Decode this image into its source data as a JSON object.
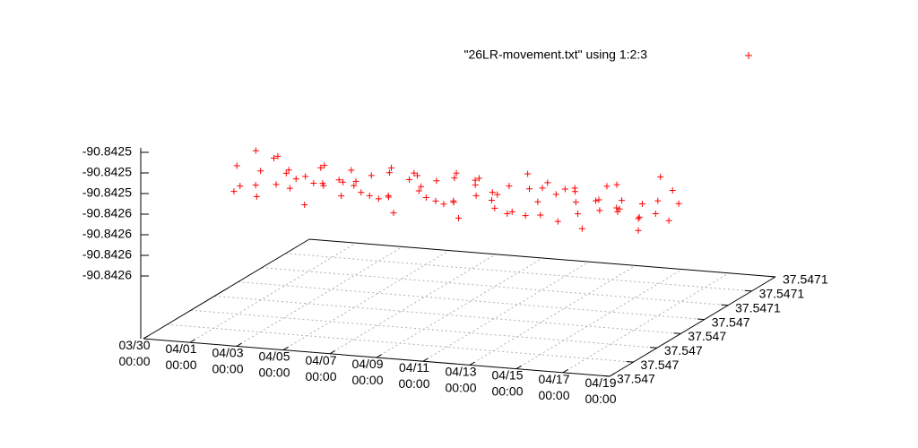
{
  "chart_data": {
    "type": "scatter3d",
    "series": [
      {
        "name": "\"26LR-movement.txt\" using 1:2:3",
        "color": "#ff0000",
        "x": [
          "03/31 00:00",
          "03/31 05:00",
          "03/31 10:00",
          "03/31 15:00",
          "03/31 20:00",
          "04/01 00:00",
          "04/01 05:00",
          "04/01 10:00",
          "04/01 15:00",
          "04/01 20:00",
          "04/02 00:00",
          "04/02 05:00",
          "04/02 10:00",
          "04/02 15:00",
          "04/02 20:00",
          "04/03 00:00",
          "04/03 05:00",
          "04/03 10:00",
          "04/03 15:00",
          "04/03 20:00",
          "04/04 00:00",
          "04/04 05:00",
          "04/04 10:00",
          "04/04 15:00",
          "04/04 20:00",
          "04/05 00:00",
          "04/05 05:00",
          "04/05 10:00",
          "04/05 15:00",
          "04/05 20:00",
          "04/06 00:00",
          "04/06 05:00",
          "04/06 10:00",
          "04/06 15:00",
          "04/06 20:00",
          "04/07 00:00",
          "04/07 05:00",
          "04/07 10:00",
          "04/07 15:00",
          "04/07 20:00",
          "04/08 00:00",
          "04/08 05:00",
          "04/08 10:00",
          "04/08 15:00",
          "04/08 20:00",
          "04/09 00:00",
          "04/09 05:00",
          "04/09 10:00",
          "04/09 15:00",
          "04/09 20:00",
          "04/10 00:00",
          "04/10 05:00",
          "04/10 10:00",
          "04/10 15:00",
          "04/10 20:00",
          "04/11 00:00",
          "04/11 05:00",
          "04/11 10:00",
          "04/11 15:00",
          "04/11 20:00",
          "04/12 00:00",
          "04/12 05:00",
          "04/12 10:00",
          "04/12 15:00",
          "04/12 20:00",
          "04/13 00:00",
          "04/13 05:00",
          "04/13 10:00",
          "04/13 15:00",
          "04/13 20:00",
          "04/14 00:00",
          "04/14 05:00",
          "04/14 10:00",
          "04/14 15:00",
          "04/14 20:00",
          "04/15 00:00",
          "04/15 05:00",
          "04/15 10:00",
          "04/15 15:00",
          "04/15 20:00",
          "04/16 00:00",
          "04/16 05:00",
          "04/16 10:00",
          "04/16 15:00",
          "04/16 20:00",
          "04/17 00:00",
          "04/17 05:00",
          "04/17 10:00",
          "04/17 15:00",
          "04/17 20:00",
          "04/18 00:00",
          "04/18 05:00",
          "04/18 10:00",
          "04/18 15:00",
          "04/18 20:00"
        ],
        "y": [
          37.5470296,
          37.5470263,
          37.5470335,
          37.5470248,
          37.5470314,
          37.5470281,
          37.547035,
          37.5470236,
          37.5470302,
          37.5470272,
          37.5470323,
          37.5470287,
          37.5470308,
          37.5470257,
          37.5470341,
          37.547029,
          37.5470266,
          37.5470329,
          37.5470305,
          37.5470281,
          37.547035,
          37.5470236,
          37.5470302,
          37.5470272,
          37.5470323,
          37.5470287,
          37.5470308,
          37.5470257,
          37.5470341,
          37.547029,
          37.5470266,
          37.5470329,
          37.5470305,
          37.5470296,
          37.5470263,
          37.5470335,
          37.5470248,
          37.5470314,
          37.5470323,
          37.5470287,
          37.5470308,
          37.5470257,
          37.5470341,
          37.547029,
          37.5470266,
          37.5470329,
          37.5470305,
          37.5470296,
          37.5470263,
          37.5470335,
          37.5470248,
          37.5470314,
          37.5470281,
          37.547035,
          37.5470236,
          37.5470302,
          37.5470272,
          37.5470248,
          37.5470314,
          37.5470281,
          37.547035,
          37.5470236,
          37.5470302,
          37.5470272,
          37.5470323,
          37.5470287,
          37.5470308,
          37.5470257,
          37.5470341,
          37.547029,
          37.5470266,
          37.5470329,
          37.5470305,
          37.5470296,
          37.5470263,
          37.5470335,
          37.5470257,
          37.5470341,
          37.547029,
          37.5470266,
          37.5470329,
          37.5470305,
          37.5470296,
          37.5470263,
          37.5470335,
          37.5470248,
          37.5470314,
          37.5470281,
          37.547035,
          37.5470236,
          37.5470302,
          37.5470272,
          37.5470323,
          37.5470287,
          37.5470308
        ],
        "z": [
          -90.842546,
          -90.842556,
          -90.842541,
          -90.842552,
          -90.842549,
          -90.842559,
          -90.842544,
          -90.84255,
          -90.842554,
          -90.842539,
          -90.842557,
          -90.842547,
          -90.842551,
          -90.842543,
          -90.842555,
          -90.842548,
          -90.84256,
          -90.842545,
          -90.842553,
          -90.84255,
          -90.842554,
          -90.842539,
          -90.842557,
          -90.842547,
          -90.842551,
          -90.842543,
          -90.842555,
          -90.842548,
          -90.84256,
          -90.842545,
          -90.842553,
          -90.842546,
          -90.842556,
          -90.842541,
          -90.842552,
          -90.842549,
          -90.842559,
          -90.842544,
          -90.842551,
          -90.842543,
          -90.842555,
          -90.842548,
          -90.84256,
          -90.842545,
          -90.842553,
          -90.842546,
          -90.842556,
          -90.842541,
          -90.842552,
          -90.842549,
          -90.842559,
          -90.842544,
          -90.84255,
          -90.842554,
          -90.842539,
          -90.842557,
          -90.842547,
          -90.842549,
          -90.842559,
          -90.842544,
          -90.84255,
          -90.842554,
          -90.842539,
          -90.842557,
          -90.842547,
          -90.842551,
          -90.842543,
          -90.842555,
          -90.842548,
          -90.84256,
          -90.842545,
          -90.842553,
          -90.842546,
          -90.842556,
          -90.842541,
          -90.842552,
          -90.84256,
          -90.842545,
          -90.842553,
          -90.842546,
          -90.842556,
          -90.842541,
          -90.842552,
          -90.842549,
          -90.842559,
          -90.842544,
          -90.84255,
          -90.842554,
          -90.842539,
          -90.842557,
          -90.842547,
          -90.842551,
          -90.842543,
          -90.842555,
          -90.842548
        ]
      }
    ],
    "xlim": [
      "03/30 00:00",
      "04/19 00:00"
    ],
    "xticks": [
      "03/30 00:00",
      "04/01 00:00",
      "04/03 00:00",
      "04/05 00:00",
      "04/07 00:00",
      "04/09 00:00",
      "04/11 00:00",
      "04/13 00:00",
      "04/15 00:00",
      "04/17 00:00",
      "04/19 00:00"
    ],
    "ylim": [
      37.547,
      37.54707
    ],
    "yticks": [
      37.547,
      {
        "value": 37.54701,
        "label": "37.547"
      },
      {
        "value": 37.54702,
        "label": "37.547"
      },
      {
        "value": 37.54703,
        "label": "37.547"
      },
      {
        "value": 37.54704,
        "label": "37.547"
      },
      {
        "value": 37.54705,
        "label": "37.5471"
      },
      {
        "value": 37.54706,
        "label": "37.5471"
      },
      {
        "value": 37.54707,
        "label": "37.5471"
      }
    ],
    "zlim": [
      -90.84258,
      -90.84252
    ],
    "zticks": [
      {
        "value": -90.84258,
        "label": "-90.8426"
      },
      {
        "value": -90.84257,
        "label": "-90.8426"
      },
      {
        "value": -90.84256,
        "label": "-90.8426"
      },
      {
        "value": -90.84255,
        "label": "-90.8426"
      },
      {
        "value": -90.84254,
        "label": "-90.8425"
      },
      {
        "value": -90.84253,
        "label": "-90.8425"
      },
      {
        "value": -90.84252,
        "label": "-90.8425"
      }
    ],
    "grid": true
  }
}
